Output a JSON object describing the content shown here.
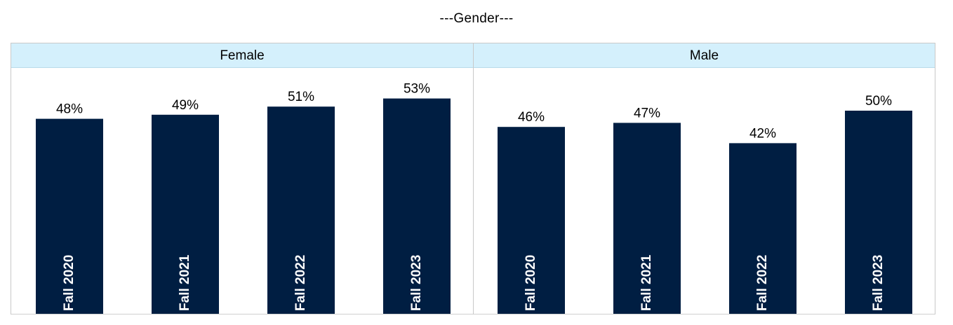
{
  "title": "---Gender---",
  "panels": [
    {
      "label": "Female"
    },
    {
      "label": "Male"
    }
  ],
  "colors": {
    "bar": "#001e42",
    "header_bg": "#d4f0fc",
    "border": "#c9c9c9"
  },
  "chart_data": [
    {
      "type": "bar",
      "title": "Female",
      "categories": [
        "Fall 2020",
        "Fall 2021",
        "Fall 2022",
        "Fall 2023"
      ],
      "values": [
        48,
        49,
        51,
        53
      ],
      "value_labels": [
        "48%",
        "49%",
        "51%",
        "53%"
      ],
      "ylim": [
        0,
        60
      ],
      "grid": false,
      "legend": "none"
    },
    {
      "type": "bar",
      "title": "Male",
      "categories": [
        "Fall 2020",
        "Fall 2021",
        "Fall 2022",
        "Fall 2023"
      ],
      "values": [
        46,
        47,
        42,
        50
      ],
      "value_labels": [
        "46%",
        "47%",
        "42%",
        "50%"
      ],
      "ylim": [
        0,
        60
      ],
      "grid": false,
      "legend": "none"
    }
  ]
}
